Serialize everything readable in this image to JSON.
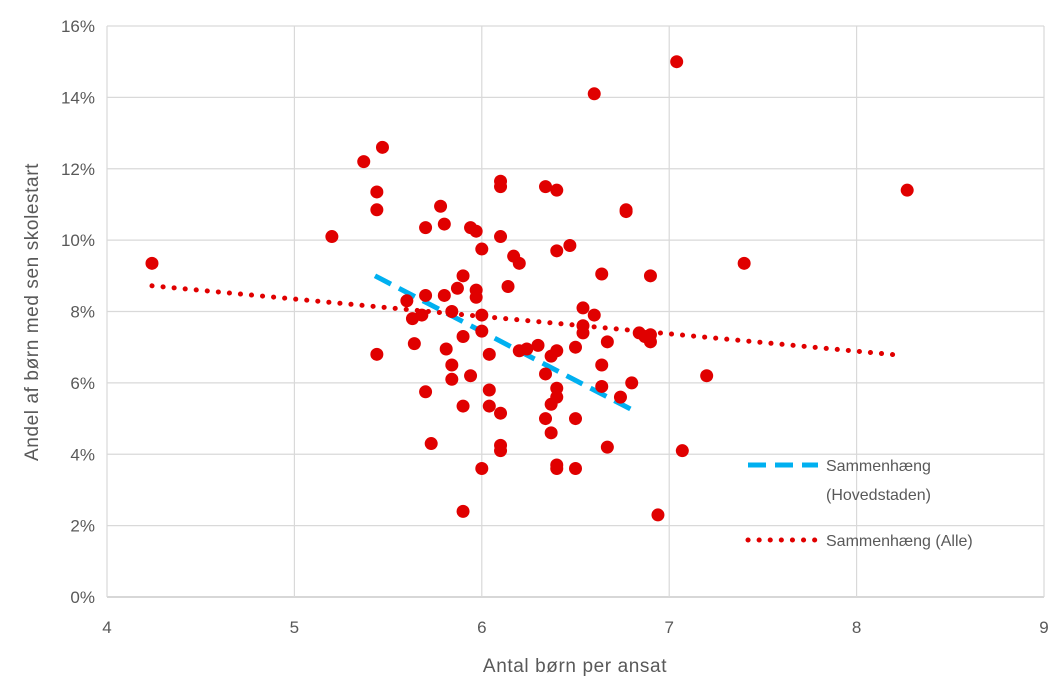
{
  "chart_data": {
    "type": "scatter",
    "xlabel": "Antal børn per ansat",
    "ylabel": "Andel af børn med sen skolestart",
    "xlim": [
      4,
      9
    ],
    "ylim": [
      0,
      16
    ],
    "x_ticks": [
      "4",
      "5",
      "6",
      "7",
      "8",
      "9"
    ],
    "y_ticks": [
      "0%",
      "2%",
      "4%",
      "6%",
      "8%",
      "10%",
      "12%",
      "14%",
      "16%"
    ],
    "grid": true,
    "legend_position": "bottom-right",
    "marker_color": "#e00000",
    "points": [
      [
        4.24,
        9.35
      ],
      [
        5.2,
        10.1
      ],
      [
        5.37,
        12.2
      ],
      [
        5.44,
        11.35
      ],
      [
        5.44,
        10.85
      ],
      [
        5.47,
        12.6
      ],
      [
        5.44,
        6.8
      ],
      [
        5.6,
        8.3
      ],
      [
        5.63,
        7.8
      ],
      [
        5.64,
        7.1
      ],
      [
        5.68,
        7.9
      ],
      [
        5.7,
        10.35
      ],
      [
        5.7,
        8.45
      ],
      [
        5.7,
        5.75
      ],
      [
        5.73,
        4.3
      ],
      [
        5.78,
        10.95
      ],
      [
        5.8,
        10.45
      ],
      [
        5.8,
        8.45
      ],
      [
        5.81,
        6.95
      ],
      [
        5.84,
        8.0
      ],
      [
        5.84,
        6.5
      ],
      [
        5.84,
        6.1
      ],
      [
        5.87,
        8.65
      ],
      [
        5.9,
        9.0
      ],
      [
        5.9,
        7.3
      ],
      [
        5.9,
        5.35
      ],
      [
        5.9,
        2.4
      ],
      [
        5.94,
        10.35
      ],
      [
        5.94,
        6.2
      ],
      [
        5.97,
        10.25
      ],
      [
        5.97,
        8.6
      ],
      [
        5.97,
        8.4
      ],
      [
        6.0,
        9.75
      ],
      [
        6.0,
        7.9
      ],
      [
        6.0,
        7.45
      ],
      [
        6.0,
        3.6
      ],
      [
        6.04,
        6.8
      ],
      [
        6.04,
        5.8
      ],
      [
        6.04,
        5.35
      ],
      [
        6.1,
        11.65
      ],
      [
        6.1,
        11.5
      ],
      [
        6.1,
        10.1
      ],
      [
        6.1,
        5.15
      ],
      [
        6.1,
        4.25
      ],
      [
        6.1,
        4.1
      ],
      [
        6.14,
        8.7
      ],
      [
        6.17,
        9.55
      ],
      [
        6.2,
        9.35
      ],
      [
        6.2,
        6.9
      ],
      [
        6.24,
        6.95
      ],
      [
        6.3,
        7.05
      ],
      [
        6.34,
        11.5
      ],
      [
        6.34,
        6.25
      ],
      [
        6.34,
        5.0
      ],
      [
        6.37,
        6.75
      ],
      [
        6.37,
        5.4
      ],
      [
        6.37,
        4.6
      ],
      [
        6.4,
        11.4
      ],
      [
        6.4,
        9.7
      ],
      [
        6.4,
        6.9
      ],
      [
        6.4,
        5.85
      ],
      [
        6.4,
        5.6
      ],
      [
        6.4,
        3.7
      ],
      [
        6.4,
        3.6
      ],
      [
        6.47,
        9.85
      ],
      [
        6.5,
        7.0
      ],
      [
        6.5,
        5.0
      ],
      [
        6.5,
        3.6
      ],
      [
        6.54,
        8.1
      ],
      [
        6.54,
        7.6
      ],
      [
        6.54,
        7.4
      ],
      [
        6.6,
        14.1
      ],
      [
        6.6,
        7.9
      ],
      [
        6.64,
        9.05
      ],
      [
        6.64,
        6.5
      ],
      [
        6.64,
        5.9
      ],
      [
        6.67,
        7.15
      ],
      [
        6.67,
        4.2
      ],
      [
        6.74,
        5.6
      ],
      [
        6.77,
        10.85
      ],
      [
        6.77,
        10.8
      ],
      [
        6.8,
        6.0
      ],
      [
        6.84,
        7.4
      ],
      [
        6.87,
        7.3
      ],
      [
        6.9,
        9.0
      ],
      [
        6.9,
        7.35
      ],
      [
        6.9,
        7.15
      ],
      [
        6.94,
        2.3
      ],
      [
        7.04,
        15.0
      ],
      [
        7.07,
        4.1
      ],
      [
        7.2,
        6.2
      ],
      [
        7.4,
        9.35
      ],
      [
        8.27,
        11.4
      ]
    ],
    "series": [
      {
        "name": "Sammenhæng (Hovedstaden)",
        "style": "dashed",
        "color": "#00b0f0",
        "x": [
          5.43,
          6.8
        ],
        "y": [
          9.0,
          5.25
        ]
      },
      {
        "name": "Sammenhæng (Alle)",
        "style": "dotted",
        "color": "#e00000",
        "x": [
          4.24,
          8.22
        ],
        "y": [
          8.72,
          6.78
        ]
      }
    ],
    "legend": [
      {
        "line1": "Sammenhæng",
        "line2": "(Hovedstaden)"
      },
      {
        "line1": "Sammenhæng (Alle)",
        "line2": ""
      }
    ]
  }
}
